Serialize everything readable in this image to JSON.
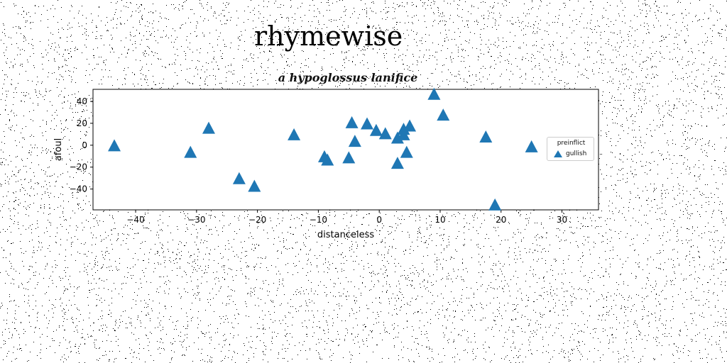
{
  "page": {
    "title": "rhymewise"
  },
  "chart_data": {
    "type": "scatter",
    "title": "a hypoglossus lanifice",
    "xlabel": "distanceless",
    "ylabel": "afoul",
    "xlim": [
      -47,
      36
    ],
    "ylim": [
      -59,
      51
    ],
    "xticks": [
      -40,
      -30,
      -20,
      -10,
      0,
      10,
      20,
      30
    ],
    "xtick_labels": [
      "−40",
      "−30",
      "−20",
      "−10",
      "0",
      "10",
      "20",
      "30"
    ],
    "yticks": [
      -40,
      -20,
      0,
      20,
      40
    ],
    "ytick_labels": [
      "−40",
      "−20",
      "0",
      "20",
      "40"
    ],
    "grid": false,
    "marker": "triangle-up",
    "marker_color": "#1f77b4",
    "legend": {
      "title": "preinflict",
      "placement": "right"
    },
    "series": [
      {
        "name": "gullish",
        "x": [
          -43.5,
          -31,
          -28,
          -23,
          -20.5,
          -14,
          -9,
          -8.5,
          -5,
          -4.5,
          -4,
          -2,
          -0.5,
          1,
          3,
          3,
          4,
          4,
          4.5,
          5,
          9,
          10.5,
          17.5,
          19,
          25
        ],
        "y": [
          -1,
          -7,
          15,
          -31,
          -38,
          9,
          -11,
          -14,
          -12,
          20,
          3,
          19,
          13,
          10,
          6,
          -17,
          9,
          14,
          -7,
          17,
          46,
          27,
          7,
          -55,
          -2
        ]
      }
    ]
  }
}
